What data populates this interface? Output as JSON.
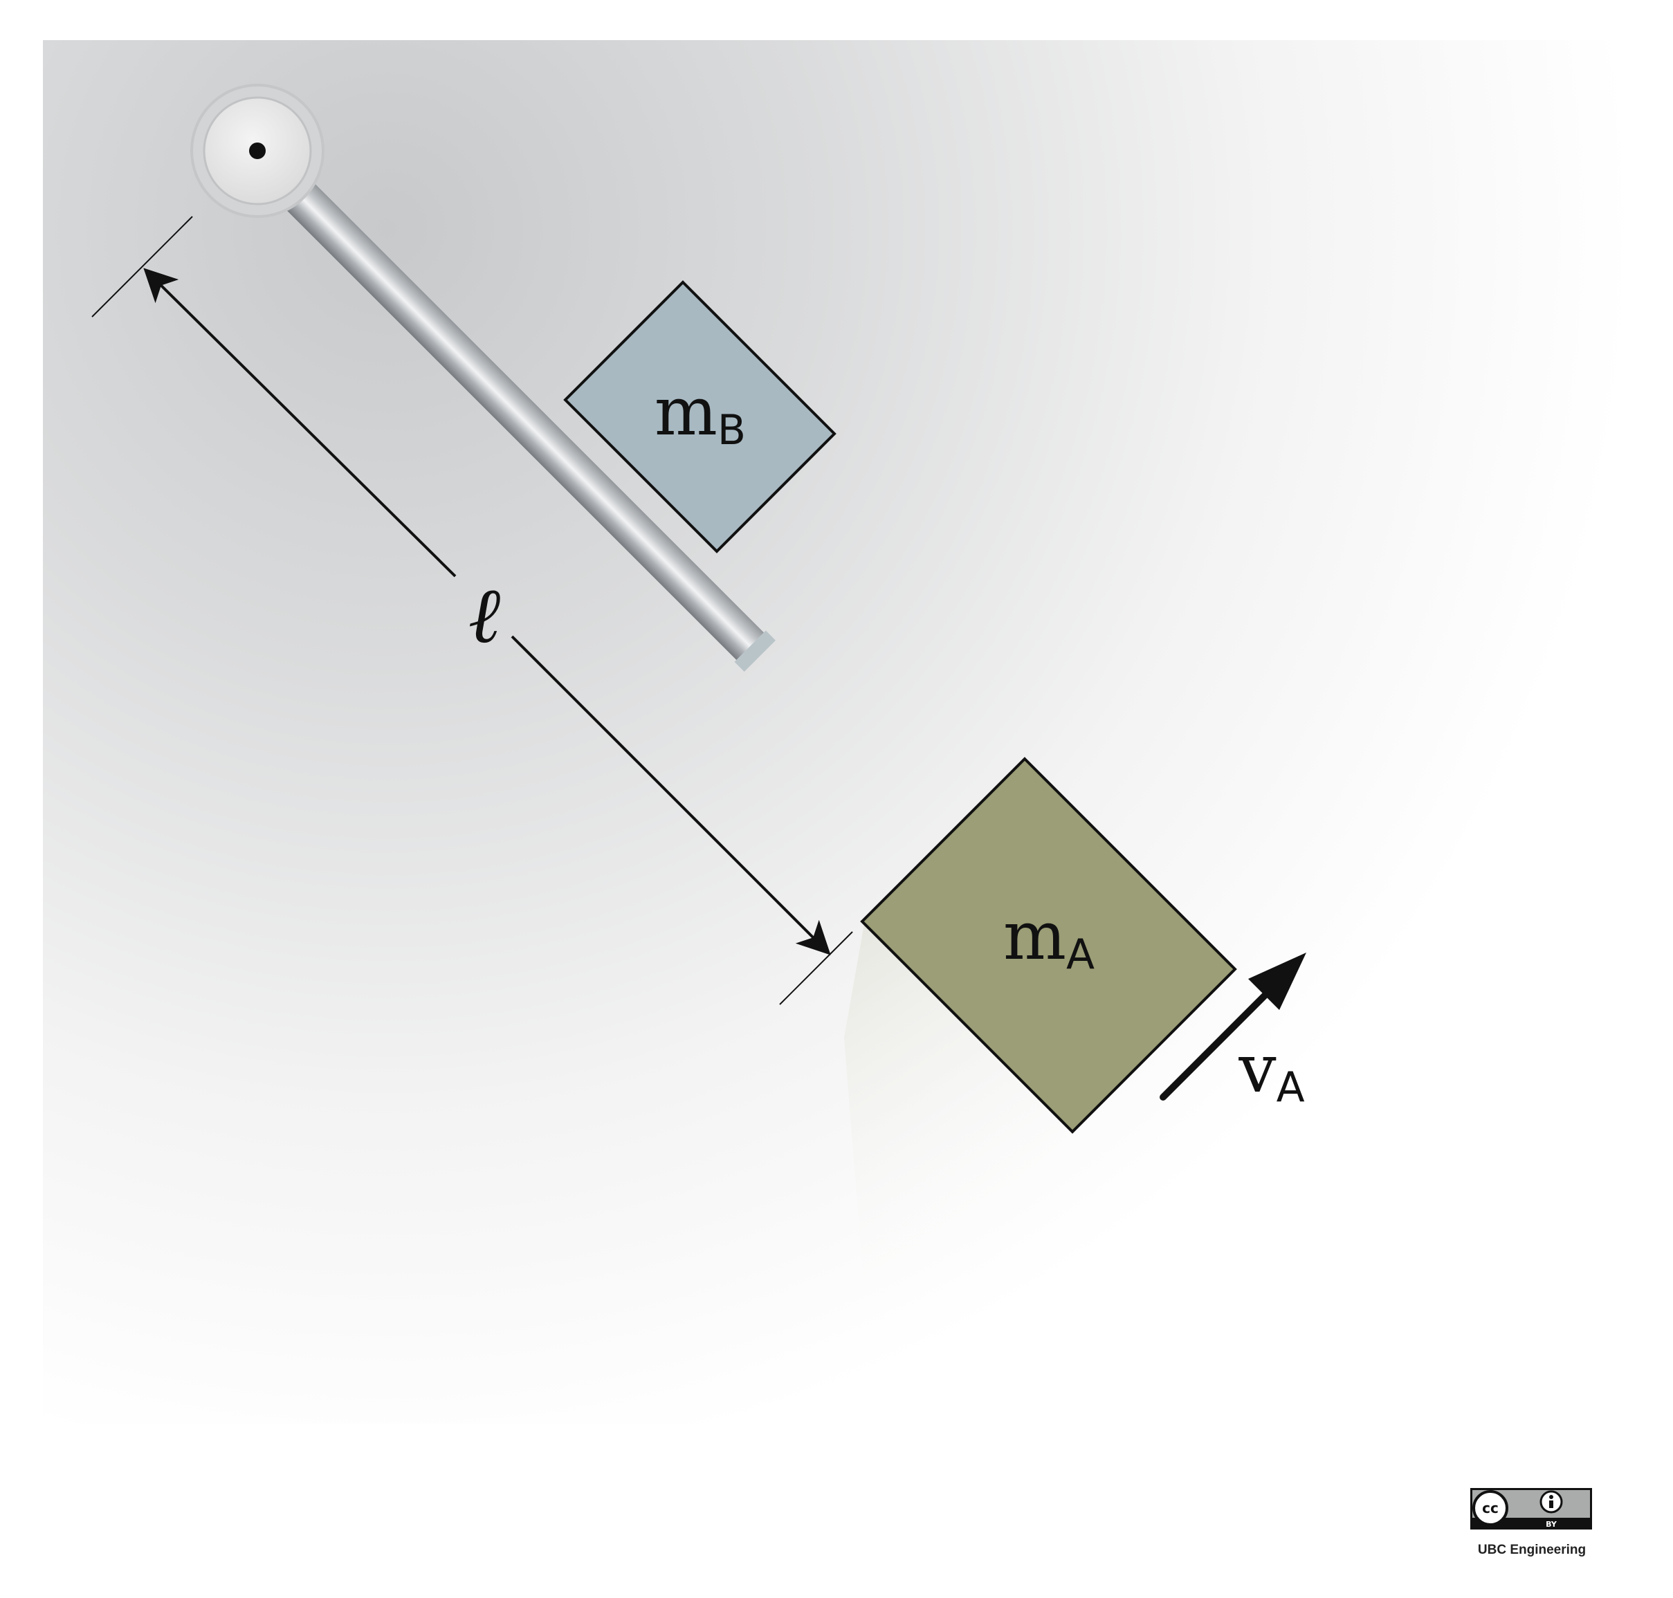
{
  "diagram": {
    "mass_b": {
      "symbol": "m",
      "subscript": "B",
      "color": "#a8b9c2"
    },
    "mass_a": {
      "symbol": "m",
      "subscript": "A",
      "color": "#9b9e76"
    },
    "length_symbol": "ℓ",
    "velocity": {
      "symbol": "v",
      "subscript": "A"
    }
  },
  "license": {
    "cc_glyph": "cc",
    "by_label": "BY",
    "credit": "UBC Engineering"
  },
  "colors": {
    "rod": "#b5b9bd",
    "background_gray": "#c9cbcd",
    "outline": "#111111"
  }
}
